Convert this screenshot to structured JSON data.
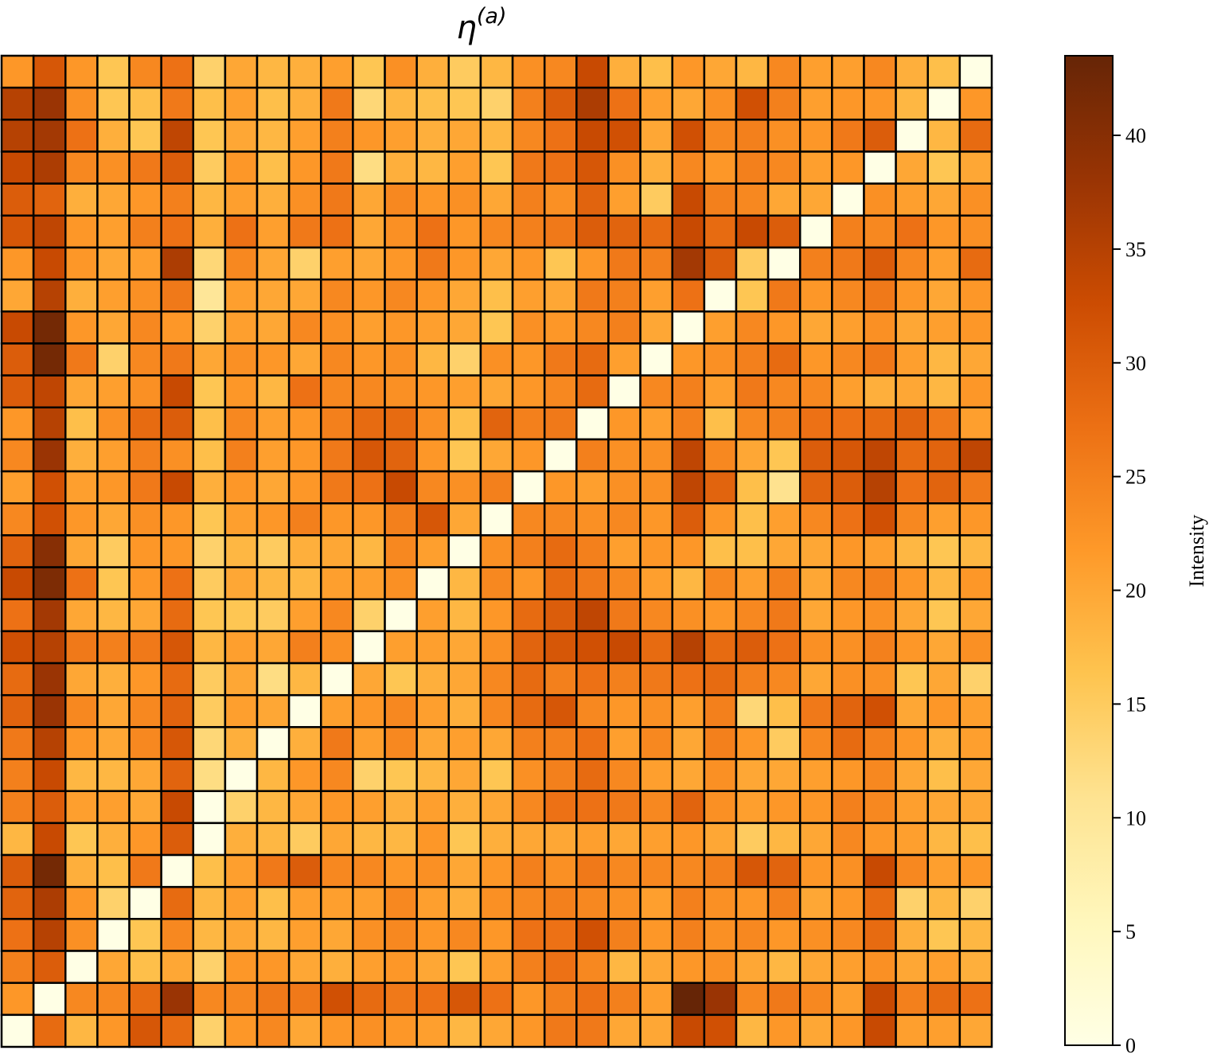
{
  "chart_data": {
    "type": "heatmap",
    "title": "η",
    "title_superscript": "(a)",
    "rows": 31,
    "cols": 31,
    "colorbar": {
      "label": "Intensity",
      "min": 0,
      "max": 43.5,
      "ticks": [
        0,
        5,
        10,
        15,
        20,
        25,
        30,
        35,
        40
      ],
      "colormap": "YlOrBr",
      "colors": [
        "#ffffe5",
        "#fff7bc",
        "#fee391",
        "#fec44f",
        "#fe9929",
        "#ec7014",
        "#cc4c02",
        "#993404",
        "#662506"
      ]
    },
    "values": [
      [
        22,
        31,
        22,
        16,
        24,
        27,
        14,
        20,
        18,
        19,
        21,
        16,
        23,
        19,
        15,
        18,
        23,
        24,
        33,
        19,
        17,
        22,
        20,
        18,
        24,
        21,
        21,
        24,
        19,
        17,
        0
      ],
      [
        35,
        38,
        23,
        16,
        17,
        26,
        17,
        21,
        17,
        19,
        26,
        13,
        18,
        17,
        16,
        14,
        25,
        30,
        36,
        27,
        21,
        20,
        23,
        32,
        25,
        21,
        22,
        22,
        18,
        0,
        22
      ],
      [
        35,
        37,
        27,
        19,
        16,
        34,
        16,
        20,
        18,
        21,
        25,
        22,
        21,
        19,
        20,
        18,
        24,
        27,
        33,
        32,
        20,
        32,
        24,
        25,
        23,
        22,
        26,
        30,
        0,
        18,
        28
      ],
      [
        33,
        36,
        24,
        23,
        26,
        30,
        15,
        22,
        17,
        22,
        26,
        12,
        19,
        18,
        21,
        16,
        26,
        27,
        31,
        23,
        19,
        24,
        22,
        25,
        24,
        21,
        22,
        0,
        20,
        16,
        20
      ],
      [
        30,
        29,
        19,
        20,
        22,
        25,
        18,
        21,
        19,
        23,
        26,
        20,
        24,
        22,
        23,
        20,
        25,
        23,
        29,
        21,
        15,
        33,
        25,
        24,
        20,
        20,
        0,
        23,
        21,
        20,
        23
      ],
      [
        31,
        34,
        22,
        21,
        25,
        27,
        19,
        27,
        21,
        26,
        27,
        20,
        23,
        27,
        22,
        24,
        25,
        26,
        30,
        29,
        28,
        33,
        28,
        33,
        30,
        0,
        25,
        24,
        27,
        22,
        23
      ],
      [
        22,
        33,
        22,
        20,
        21,
        36,
        13,
        24,
        20,
        14,
        21,
        20,
        22,
        26,
        22,
        20,
        22,
        16,
        22,
        26,
        25,
        37,
        30,
        15,
        0,
        25,
        26,
        30,
        24,
        21,
        28
      ],
      [
        20,
        35,
        19,
        21,
        23,
        26,
        10,
        21,
        20,
        20,
        24,
        22,
        24,
        22,
        20,
        17,
        21,
        20,
        26,
        25,
        21,
        27,
        0,
        16,
        26,
        22,
        24,
        26,
        22,
        20,
        22
      ],
      [
        33,
        42,
        22,
        20,
        24,
        22,
        14,
        21,
        20,
        24,
        23,
        21,
        22,
        21,
        20,
        16,
        23,
        22,
        24,
        25,
        20,
        0,
        21,
        24,
        22,
        20,
        21,
        23,
        20,
        21,
        22
      ],
      [
        30,
        42,
        26,
        14,
        24,
        26,
        20,
        23,
        22,
        20,
        24,
        22,
        23,
        18,
        14,
        23,
        22,
        26,
        28,
        21,
        0,
        22,
        23,
        25,
        28,
        22,
        24,
        26,
        21,
        18,
        20
      ],
      [
        30,
        34,
        20,
        21,
        23,
        33,
        16,
        22,
        18,
        27,
        24,
        24,
        23,
        22,
        21,
        20,
        22,
        24,
        28,
        0,
        24,
        25,
        21,
        26,
        24,
        24,
        21,
        19,
        20,
        18,
        22
      ],
      [
        22,
        35,
        17,
        23,
        28,
        30,
        17,
        24,
        21,
        22,
        25,
        28,
        28,
        23,
        17,
        29,
        25,
        26,
        0,
        22,
        21,
        25,
        17,
        24,
        25,
        27,
        27,
        28,
        29,
        26,
        21
      ],
      [
        24,
        38,
        19,
        21,
        25,
        23,
        17,
        25,
        21,
        22,
        26,
        31,
        29,
        22,
        16,
        20,
        22,
        0,
        25,
        23,
        23,
        34,
        24,
        20,
        16,
        30,
        31,
        34,
        28,
        29,
        34
      ],
      [
        21,
        32,
        21,
        22,
        26,
        33,
        19,
        22,
        20,
        22,
        26,
        27,
        33,
        24,
        23,
        25,
        0,
        22,
        21,
        23,
        23,
        34,
        29,
        17,
        11,
        29,
        30,
        35,
        27,
        29,
        26
      ],
      [
        24,
        32,
        22,
        20,
        23,
        22,
        16,
        21,
        22,
        25,
        22,
        22,
        25,
        31,
        20,
        0,
        24,
        24,
        23,
        24,
        22,
        30,
        22,
        17,
        21,
        24,
        27,
        32,
        24,
        21,
        22
      ],
      [
        29,
        40,
        20,
        15,
        22,
        22,
        14,
        18,
        15,
        19,
        20,
        18,
        24,
        21,
        0,
        23,
        25,
        28,
        25,
        21,
        22,
        22,
        17,
        17,
        20,
        20,
        22,
        21,
        18,
        16,
        18
      ],
      [
        33,
        41,
        27,
        16,
        22,
        27,
        15,
        20,
        18,
        18,
        21,
        21,
        23,
        0,
        18,
        24,
        22,
        28,
        26,
        24,
        21,
        18,
        24,
        21,
        25,
        20,
        24,
        25,
        22,
        18,
        22
      ],
      [
        27,
        37,
        20,
        18,
        20,
        28,
        16,
        16,
        15,
        21,
        24,
        14,
        0,
        21,
        18,
        22,
        28,
        30,
        34,
        26,
        24,
        23,
        22,
        24,
        26,
        20,
        22,
        23,
        20,
        16,
        20
      ],
      [
        32,
        35,
        26,
        25,
        26,
        31,
        18,
        21,
        20,
        25,
        23,
        0,
        21,
        21,
        20,
        23,
        29,
        31,
        32,
        33,
        28,
        35,
        28,
        30,
        27,
        23,
        23,
        25,
        22,
        20,
        23
      ],
      [
        28,
        38,
        20,
        19,
        22,
        28,
        15,
        20,
        12,
        18,
        0,
        20,
        16,
        19,
        20,
        24,
        28,
        25,
        27,
        25,
        26,
        27,
        28,
        25,
        24,
        20,
        23,
        23,
        16,
        20,
        14
      ],
      [
        29,
        38,
        24,
        20,
        24,
        29,
        15,
        21,
        20,
        0,
        21,
        22,
        24,
        21,
        19,
        24,
        28,
        31,
        24,
        22,
        23,
        21,
        25,
        13,
        17,
        26,
        29,
        32,
        20,
        22,
        21
      ],
      [
        26,
        35,
        22,
        20,
        24,
        31,
        13,
        19,
        0,
        19,
        26,
        21,
        24,
        20,
        21,
        20,
        25,
        25,
        27,
        21,
        24,
        20,
        25,
        22,
        15,
        24,
        28,
        25,
        22,
        19,
        21
      ],
      [
        25,
        33,
        18,
        18,
        20,
        29,
        12,
        0,
        18,
        22,
        24,
        14,
        16,
        18,
        20,
        16,
        23,
        25,
        28,
        24,
        21,
        20,
        23,
        20,
        20,
        21,
        22,
        24,
        20,
        17,
        20
      ],
      [
        25,
        30,
        21,
        21,
        20,
        33,
        0,
        14,
        18,
        20,
        22,
        21,
        19,
        21,
        19,
        20,
        24,
        27,
        27,
        26,
        24,
        29,
        23,
        21,
        22,
        22,
        25,
        24,
        21,
        20,
        20
      ],
      [
        18,
        33,
        16,
        19,
        22,
        30,
        0,
        19,
        18,
        15,
        20,
        18,
        18,
        22,
        16,
        19,
        20,
        20,
        21,
        20,
        21,
        22,
        20,
        15,
        18,
        20,
        24,
        22,
        21,
        18,
        17
      ],
      [
        30,
        42,
        19,
        17,
        26,
        0,
        17,
        21,
        26,
        30,
        24,
        24,
        22,
        23,
        20,
        22,
        25,
        23,
        26,
        24,
        24,
        24,
        25,
        31,
        29,
        22,
        23,
        33,
        24,
        21,
        22
      ],
      [
        29,
        36,
        22,
        14,
        0,
        28,
        18,
        21,
        17,
        21,
        21,
        21,
        24,
        21,
        19,
        23,
        24,
        25,
        24,
        23,
        21,
        25,
        23,
        22,
        25,
        20,
        22,
        28,
        14,
        18,
        14
      ],
      [
        27,
        35,
        23,
        0,
        16,
        24,
        18,
        20,
        18,
        21,
        20,
        23,
        24,
        22,
        24,
        22,
        27,
        27,
        32,
        25,
        22,
        25,
        23,
        24,
        22,
        23,
        24,
        28,
        19,
        16,
        18
      ],
      [
        25,
        30,
        0,
        20,
        17,
        20,
        14,
        22,
        22,
        20,
        19,
        21,
        22,
        20,
        16,
        21,
        25,
        27,
        24,
        18,
        20,
        22,
        23,
        20,
        18,
        20,
        21,
        23,
        20,
        21,
        19
      ],
      [
        22,
        0,
        24,
        24,
        28,
        38,
        24,
        24,
        26,
        26,
        32,
        28,
        26,
        27,
        31,
        27,
        22,
        25,
        27,
        25,
        21,
        45,
        38,
        24,
        26,
        24,
        21,
        33,
        25,
        28,
        27
      ],
      [
        0,
        28,
        18,
        22,
        31,
        28,
        14,
        22,
        24,
        20,
        22,
        23,
        22,
        21,
        18,
        20,
        22,
        26,
        26,
        20,
        20,
        33,
        32,
        18,
        22,
        20,
        22,
        33,
        21,
        21,
        20
      ]
    ]
  }
}
